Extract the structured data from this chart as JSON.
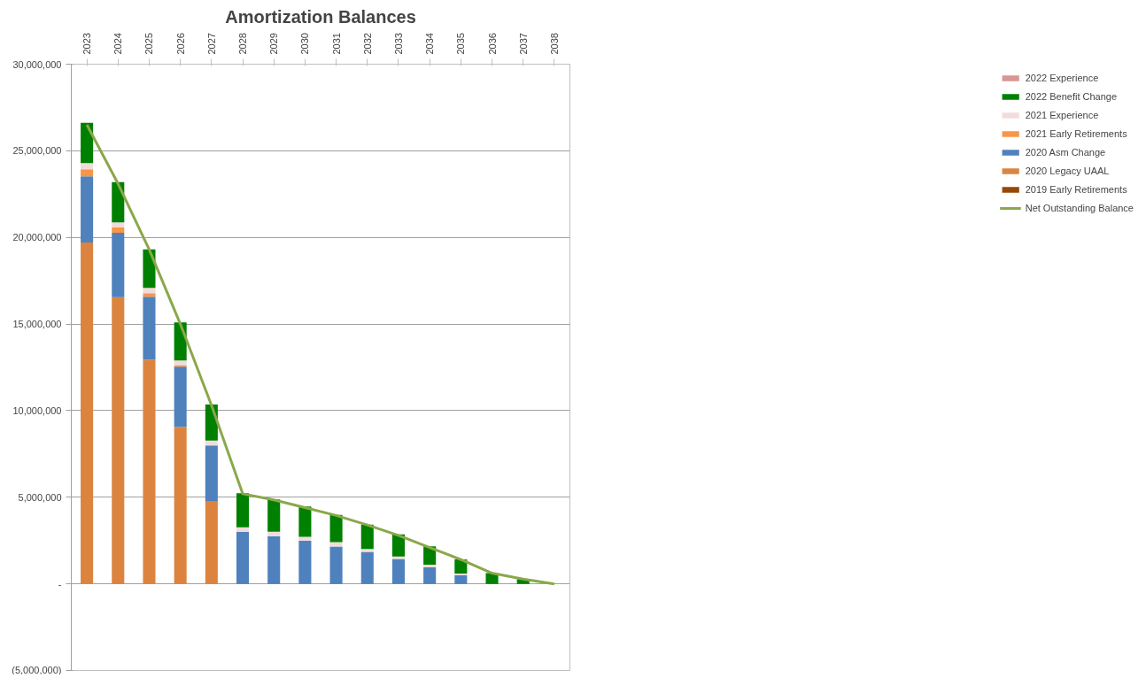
{
  "chart_data": {
    "type": "bar",
    "title": "Amortization Balances",
    "stacked": true,
    "categories": [
      "2023",
      "2024",
      "2025",
      "2026",
      "2027",
      "2028",
      "2029",
      "2030",
      "2031",
      "2032",
      "2033",
      "2034",
      "2035",
      "2036",
      "2037",
      "2038"
    ],
    "series": [
      {
        "name": "2019 Early Retirements",
        "color": "#974706",
        "values": [
          0,
          0,
          0,
          0,
          0,
          0,
          0,
          0,
          0,
          0,
          0,
          0,
          0,
          0,
          0,
          0
        ]
      },
      {
        "name": "2020 Legacy UAAL",
        "color": "#dc843f",
        "values": [
          19710000,
          16550000,
          12950000,
          9070000,
          4750000,
          0,
          0,
          0,
          0,
          0,
          0,
          0,
          0,
          0,
          0,
          0
        ]
      },
      {
        "name": "2020 Asm Change",
        "color": "#4f81bd",
        "values": [
          3810000,
          3720000,
          3630000,
          3470000,
          3240000,
          3010000,
          2750000,
          2500000,
          2150000,
          1850000,
          1440000,
          950000,
          510000,
          0,
          0,
          0
        ]
      },
      {
        "name": "2021 Early Retirements",
        "color": "#f79646",
        "values": [
          410000,
          300000,
          200000,
          90000,
          0,
          0,
          0,
          0,
          0,
          0,
          0,
          0,
          0,
          0,
          0,
          0
        ]
      },
      {
        "name": "2021 Experience",
        "color": "#f2dcdb",
        "values": [
          360000,
          300000,
          300000,
          270000,
          280000,
          250000,
          260000,
          210000,
          260000,
          160000,
          140000,
          150000,
          90000,
          0,
          0,
          0
        ]
      },
      {
        "name": "2022 Benefit Change",
        "color": "#008000",
        "values": [
          2330000,
          2320000,
          2230000,
          2190000,
          2090000,
          1970000,
          1870000,
          1760000,
          1570000,
          1410000,
          1270000,
          1060000,
          810000,
          620000,
          270000,
          0
        ]
      },
      {
        "name": "2022 Experience",
        "color": "#d99594",
        "values": [
          0,
          0,
          0,
          0,
          0,
          0,
          0,
          0,
          0,
          0,
          0,
          0,
          0,
          0,
          0,
          0
        ]
      },
      {
        "name": "Net Outstanding Balance",
        "type": "line",
        "color": "#8aa84a",
        "values": [
          26500000,
          23100000,
          19300000,
          15000000,
          10300000,
          5200000,
          4850000,
          4400000,
          3950000,
          3400000,
          2800000,
          2100000,
          1400000,
          620000,
          280000,
          0
        ]
      }
    ],
    "ylim": [
      -5000000,
      30000000
    ],
    "yticks": [
      {
        "value": -5000000,
        "label": "(5,000,000)"
      },
      {
        "value": 0,
        "label": "-"
      },
      {
        "value": 5000000,
        "label": "5,000,000"
      },
      {
        "value": 10000000,
        "label": "10,000,000"
      },
      {
        "value": 15000000,
        "label": "15,000,000"
      },
      {
        "value": 20000000,
        "label": "20,000,000"
      },
      {
        "value": 25000000,
        "label": "25,000,000"
      },
      {
        "value": 30000000,
        "label": "30,000,000"
      }
    ],
    "grid": "y",
    "legend": "right",
    "line_style": "solid"
  }
}
